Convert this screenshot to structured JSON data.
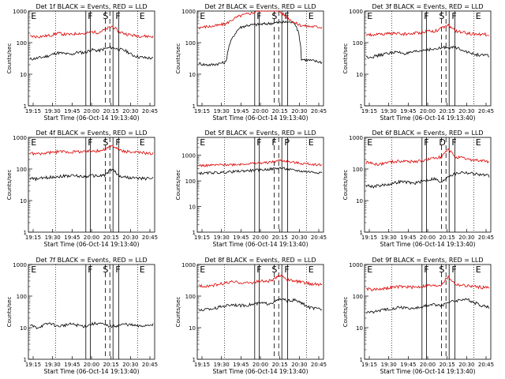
{
  "chart_data": [
    {
      "type": "line",
      "title": "Det 1f BLACK = Events, RED = LLD",
      "xlabel": "Start Time (06-Oct-14 19:13:40)",
      "ylabel": "Counts/sec",
      "ylog": true,
      "ylim": [
        1,
        1000
      ],
      "x_ticks": [
        "19:15",
        "19:30",
        "19:45",
        "20:00",
        "20:15",
        "20:30",
        "20:45"
      ],
      "y_ticks": [
        "1",
        "10",
        "100",
        "1000"
      ],
      "markers": [
        "E",
        "F",
        "S",
        "F",
        "E"
      ],
      "series": [
        {
          "color": "#000000",
          "values": [
            30,
            32,
            35,
            40,
            48,
            45,
            42,
            50,
            48,
            60,
            55,
            65,
            70,
            62,
            55,
            40,
            35,
            33,
            32
          ]
        },
        {
          "color": "#dd0000",
          "values": [
            160,
            155,
            160,
            170,
            200,
            185,
            180,
            200,
            190,
            220,
            210,
            260,
            330,
            220,
            190,
            170,
            165,
            160,
            155
          ]
        }
      ]
    },
    {
      "type": "line",
      "title": "Det 2f BLACK = Events, RED = LLD",
      "xlabel": "Start Time (06-Oct-14 19:13:40)",
      "ylabel": "Counts/sec",
      "ylog": true,
      "ylim": [
        1,
        1000
      ],
      "x_ticks": [
        "19:15",
        "19:30",
        "19:45",
        "20:00",
        "20:15",
        "20:30",
        "20:45"
      ],
      "y_ticks": [
        "1",
        "10",
        "100",
        "1000"
      ],
      "markers": [
        "E",
        "F",
        "S",
        "F",
        "E"
      ],
      "series": [
        {
          "color": "#000000",
          "values": [
            22,
            20,
            20,
            22,
            24,
            150,
            300,
            350,
            370,
            380,
            400,
            420,
            440,
            450,
            430,
            30,
            28,
            26,
            24
          ]
        },
        {
          "color": "#dd0000",
          "values": [
            300,
            320,
            330,
            360,
            400,
            550,
            700,
            800,
            900,
            1100,
            1400,
            1200,
            900,
            600,
            420,
            350,
            330,
            320,
            310
          ]
        }
      ]
    },
    {
      "type": "line",
      "title": "Det 3f BLACK = Events, RED = LLD",
      "xlabel": "Start Time (06-Oct-14 19:13:40)",
      "ylabel": "Counts/sec",
      "ylog": true,
      "ylim": [
        1,
        1000
      ],
      "x_ticks": [
        "19:15",
        "19:30",
        "19:45",
        "20:00",
        "20:15",
        "20:30",
        "20:45"
      ],
      "y_ticks": [
        "1",
        "10",
        "100",
        "1000"
      ],
      "markers": [
        "E",
        "F",
        "S",
        "F",
        "E"
      ],
      "series": [
        {
          "color": "#000000",
          "values": [
            35,
            36,
            40,
            45,
            50,
            48,
            45,
            50,
            55,
            62,
            60,
            68,
            72,
            70,
            62,
            48,
            42,
            40,
            38
          ]
        },
        {
          "color": "#dd0000",
          "values": [
            180,
            175,
            180,
            190,
            200,
            190,
            185,
            200,
            210,
            240,
            230,
            280,
            350,
            240,
            210,
            195,
            190,
            185,
            180
          ]
        }
      ]
    },
    {
      "type": "line",
      "title": "Det 4f BLACK = Events, RED = LLD",
      "xlabel": "Start Time (06-Oct-14 19:13:40)",
      "ylabel": "Counts/sec",
      "ylog": true,
      "ylim": [
        1,
        1000
      ],
      "x_ticks": [
        "19:15",
        "19:30",
        "19:45",
        "20:00",
        "20:15",
        "20:30",
        "20:45"
      ],
      "y_ticks": [
        "1",
        "10",
        "100",
        "1000"
      ],
      "markers": [
        "E",
        "F",
        "S",
        "F",
        "E"
      ],
      "series": [
        {
          "color": "#000000",
          "values": [
            50,
            48,
            52,
            55,
            58,
            60,
            62,
            60,
            58,
            62,
            60,
            65,
            100,
            60,
            55,
            52,
            50,
            50,
            52
          ]
        },
        {
          "color": "#dd0000",
          "values": [
            320,
            300,
            310,
            330,
            350,
            360,
            340,
            360,
            350,
            380,
            370,
            420,
            550,
            400,
            360,
            340,
            330,
            320,
            310
          ]
        }
      ]
    },
    {
      "type": "line",
      "title": "Det 5f BLACK = Events, RED = LLD",
      "xlabel": "Start Time (06-Oct-14 19:13:40)",
      "ylabel": "Counts/sec",
      "ylog": true,
      "ylim": [
        1,
        5000
      ],
      "x_ticks": [
        "19:15",
        "19:30",
        "19:45",
        "20:00",
        "20:15",
        "20:30",
        "20:45"
      ],
      "y_ticks": [
        "1",
        "10",
        "100",
        "1000"
      ],
      "markers": [
        "E",
        "F",
        "F",
        "P",
        "E"
      ],
      "series": [
        {
          "color": "#000000",
          "values": [
            200,
            200,
            210,
            210,
            220,
            230,
            240,
            250,
            260,
            270,
            280,
            300,
            320,
            280,
            260,
            240,
            230,
            220,
            210
          ]
        },
        {
          "color": "#dd0000",
          "values": [
            400,
            400,
            410,
            420,
            430,
            440,
            450,
            470,
            480,
            500,
            520,
            560,
            650,
            560,
            520,
            480,
            460,
            440,
            430
          ]
        }
      ]
    },
    {
      "type": "line",
      "title": "Det 6f BLACK = Events, RED = LLD",
      "xlabel": "Start Time (06-Oct-14 19:13:40)",
      "ylabel": "Counts/sec",
      "ylog": true,
      "ylim": [
        1,
        1000
      ],
      "x_ticks": [
        "19:15",
        "19:30",
        "19:45",
        "20:00",
        "20:15",
        "20:30",
        "20:45"
      ],
      "y_ticks": [
        "1",
        "10",
        "100",
        "1000"
      ],
      "markers": [
        "E",
        "F",
        "D",
        "F",
        "E"
      ],
      "series": [
        {
          "color": "#000000",
          "values": [
            30,
            28,
            30,
            32,
            35,
            40,
            38,
            35,
            40,
            45,
            50,
            35,
            60,
            70,
            80,
            75,
            70,
            65,
            60
          ]
        },
        {
          "color": "#dd0000",
          "values": [
            160,
            150,
            140,
            160,
            170,
            180,
            175,
            170,
            180,
            200,
            220,
            240,
            400,
            240,
            220,
            200,
            190,
            180,
            175
          ]
        }
      ]
    },
    {
      "type": "line",
      "title": "Det 7f BLACK = Events, RED = LLD",
      "xlabel": "Start Time (06-Oct-14 19:13:40)",
      "ylabel": "Counts/sec",
      "ylog": true,
      "ylim": [
        1,
        1000
      ],
      "x_ticks": [
        "19:15",
        "19:30",
        "19:45",
        "20:00",
        "20:15",
        "20:30",
        "20:45"
      ],
      "y_ticks": [
        "1",
        "10",
        "100",
        "1000"
      ],
      "markers": [
        "E",
        "F",
        "S",
        "F",
        "E"
      ],
      "series": [
        {
          "color": "#000000",
          "values": [
            12,
            10,
            12,
            14,
            11,
            12,
            13,
            12,
            11,
            13,
            14,
            12,
            11,
            12,
            13,
            12,
            11,
            12,
            13
          ]
        }
      ]
    },
    {
      "type": "line",
      "title": "Det 8f BLACK = Events, RED = LLD",
      "xlabel": "Start Time (06-Oct-14 19:13:40)",
      "ylabel": "Counts/sec",
      "ylog": true,
      "ylim": [
        1,
        1000
      ],
      "x_ticks": [
        "19:15",
        "19:30",
        "19:45",
        "20:00",
        "20:15",
        "20:30",
        "20:45"
      ],
      "y_ticks": [
        "1",
        "10",
        "100",
        "1000"
      ],
      "markers": [
        "E",
        "F",
        "S",
        "F",
        "E"
      ],
      "series": [
        {
          "color": "#000000",
          "values": [
            35,
            38,
            40,
            45,
            50,
            55,
            50,
            52,
            55,
            60,
            58,
            65,
            80,
            70,
            75,
            60,
            45,
            40,
            38
          ]
        },
        {
          "color": "#dd0000",
          "values": [
            220,
            210,
            220,
            240,
            260,
            280,
            270,
            260,
            270,
            300,
            290,
            330,
            480,
            320,
            300,
            280,
            250,
            240,
            230
          ]
        }
      ]
    },
    {
      "type": "line",
      "title": "Det 9f BLACK = Events, RED = LLD",
      "xlabel": "Start Time (06-Oct-14 19:13:40)",
      "ylabel": "Counts/sec",
      "ylog": true,
      "ylim": [
        1,
        1000
      ],
      "x_ticks": [
        "19:15",
        "19:30",
        "19:45",
        "20:00",
        "20:15",
        "20:30",
        "20:45"
      ],
      "y_ticks": [
        "1",
        "10",
        "100",
        "1000"
      ],
      "markers": [
        "E",
        "F",
        "S",
        "F",
        "E"
      ],
      "series": [
        {
          "color": "#000000",
          "values": [
            30,
            32,
            35,
            38,
            42,
            45,
            42,
            40,
            45,
            50,
            55,
            50,
            65,
            70,
            80,
            75,
            60,
            50,
            45
          ]
        },
        {
          "color": "#dd0000",
          "values": [
            170,
            160,
            170,
            180,
            190,
            200,
            195,
            190,
            200,
            220,
            210,
            230,
            400,
            240,
            220,
            210,
            200,
            190,
            185
          ]
        }
      ]
    }
  ]
}
